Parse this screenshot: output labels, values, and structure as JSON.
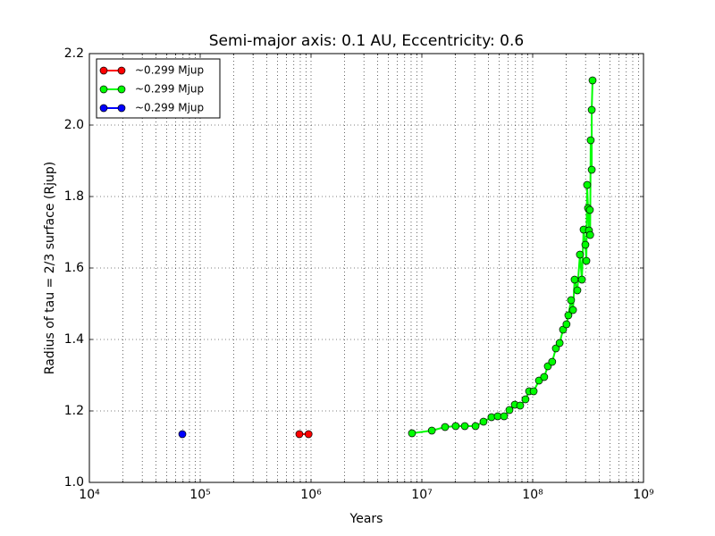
{
  "chart_data": {
    "type": "line",
    "title": "Semi-major axis: 0.1 AU, Eccentricity: 0.6",
    "x_label": "Years",
    "y_label": "Radius of tau = 2/3 surface (Rjup)",
    "xscale": "log",
    "grid": true,
    "legend_loc": "upper-left",
    "xlim": [
      10000,
      1000000000
    ],
    "ylim": [
      1.0,
      2.2
    ],
    "xticks": [
      {
        "value": 10000,
        "label": "10⁴"
      },
      {
        "value": 100000,
        "label": "10⁵"
      },
      {
        "value": 1000000,
        "label": "10⁶"
      },
      {
        "value": 10000000,
        "label": "10⁷"
      },
      {
        "value": 100000000,
        "label": "10⁸"
      },
      {
        "value": 1000000000,
        "label": "10⁹"
      }
    ],
    "xminor_ticks": [
      20000,
      30000,
      40000,
      50000,
      60000,
      70000,
      80000,
      90000,
      200000,
      300000,
      400000,
      500000,
      600000,
      700000,
      800000,
      900000,
      2000000,
      3000000,
      4000000,
      5000000,
      6000000,
      7000000,
      8000000,
      9000000,
      20000000,
      30000000,
      40000000,
      50000000,
      60000000,
      70000000,
      80000000,
      90000000,
      200000000,
      300000000,
      400000000,
      500000000,
      600000000,
      700000000,
      800000000,
      900000000
    ],
    "yticks": [
      {
        "value": 1.0,
        "label": "1.0"
      },
      1.2,
      1.4,
      1.6,
      1.8,
      {
        "value": 2.0,
        "label": "2.0"
      },
      2.2
    ],
    "series": [
      {
        "name": "~0.299 Mjup",
        "color": "#ff0000",
        "x": [
          785000,
          950000
        ],
        "values": [
          1.135,
          1.135
        ]
      },
      {
        "name": "~0.299 Mjup",
        "color": "#00ff00",
        "x": [
          8150000,
          12300000,
          16200000,
          20200000,
          24400000,
          30500000,
          36000000,
          42500000,
          48400000,
          55200000,
          61700000,
          69000000,
          77100000,
          86100000,
          92900000,
          102000000,
          114000000,
          127000000,
          137000000,
          150000000,
          162000000,
          175000000,
          188000000,
          202000000,
          210000000,
          222000000,
          231000000,
          239000000,
          253000000,
          267000000,
          278000000,
          288000000,
          299000000,
          305000000,
          310000000,
          316000000,
          322000000,
          328000000,
          330000000,
          334000000,
          341000000,
          341000000,
          347000000
        ],
        "values": [
          1.1375,
          1.145,
          1.155,
          1.1575,
          1.1575,
          1.1575,
          1.17,
          1.1825,
          1.185,
          1.185,
          1.2025,
          1.2175,
          1.215,
          1.2325,
          1.255,
          1.255,
          1.285,
          1.295,
          1.325,
          1.3375,
          1.375,
          1.39,
          1.4275,
          1.4425,
          1.4675,
          1.51,
          1.4825,
          1.5675,
          1.5375,
          1.6375,
          1.5675,
          1.7075,
          1.665,
          1.62,
          1.8325,
          1.7675,
          1.705,
          1.7625,
          1.6925,
          1.9575,
          1.875,
          2.0425,
          2.125
        ]
      },
      {
        "name": "~0.299 Mjup",
        "color": "#0000ff",
        "x": [
          69000
        ],
        "values": [
          1.135
        ]
      }
    ]
  }
}
